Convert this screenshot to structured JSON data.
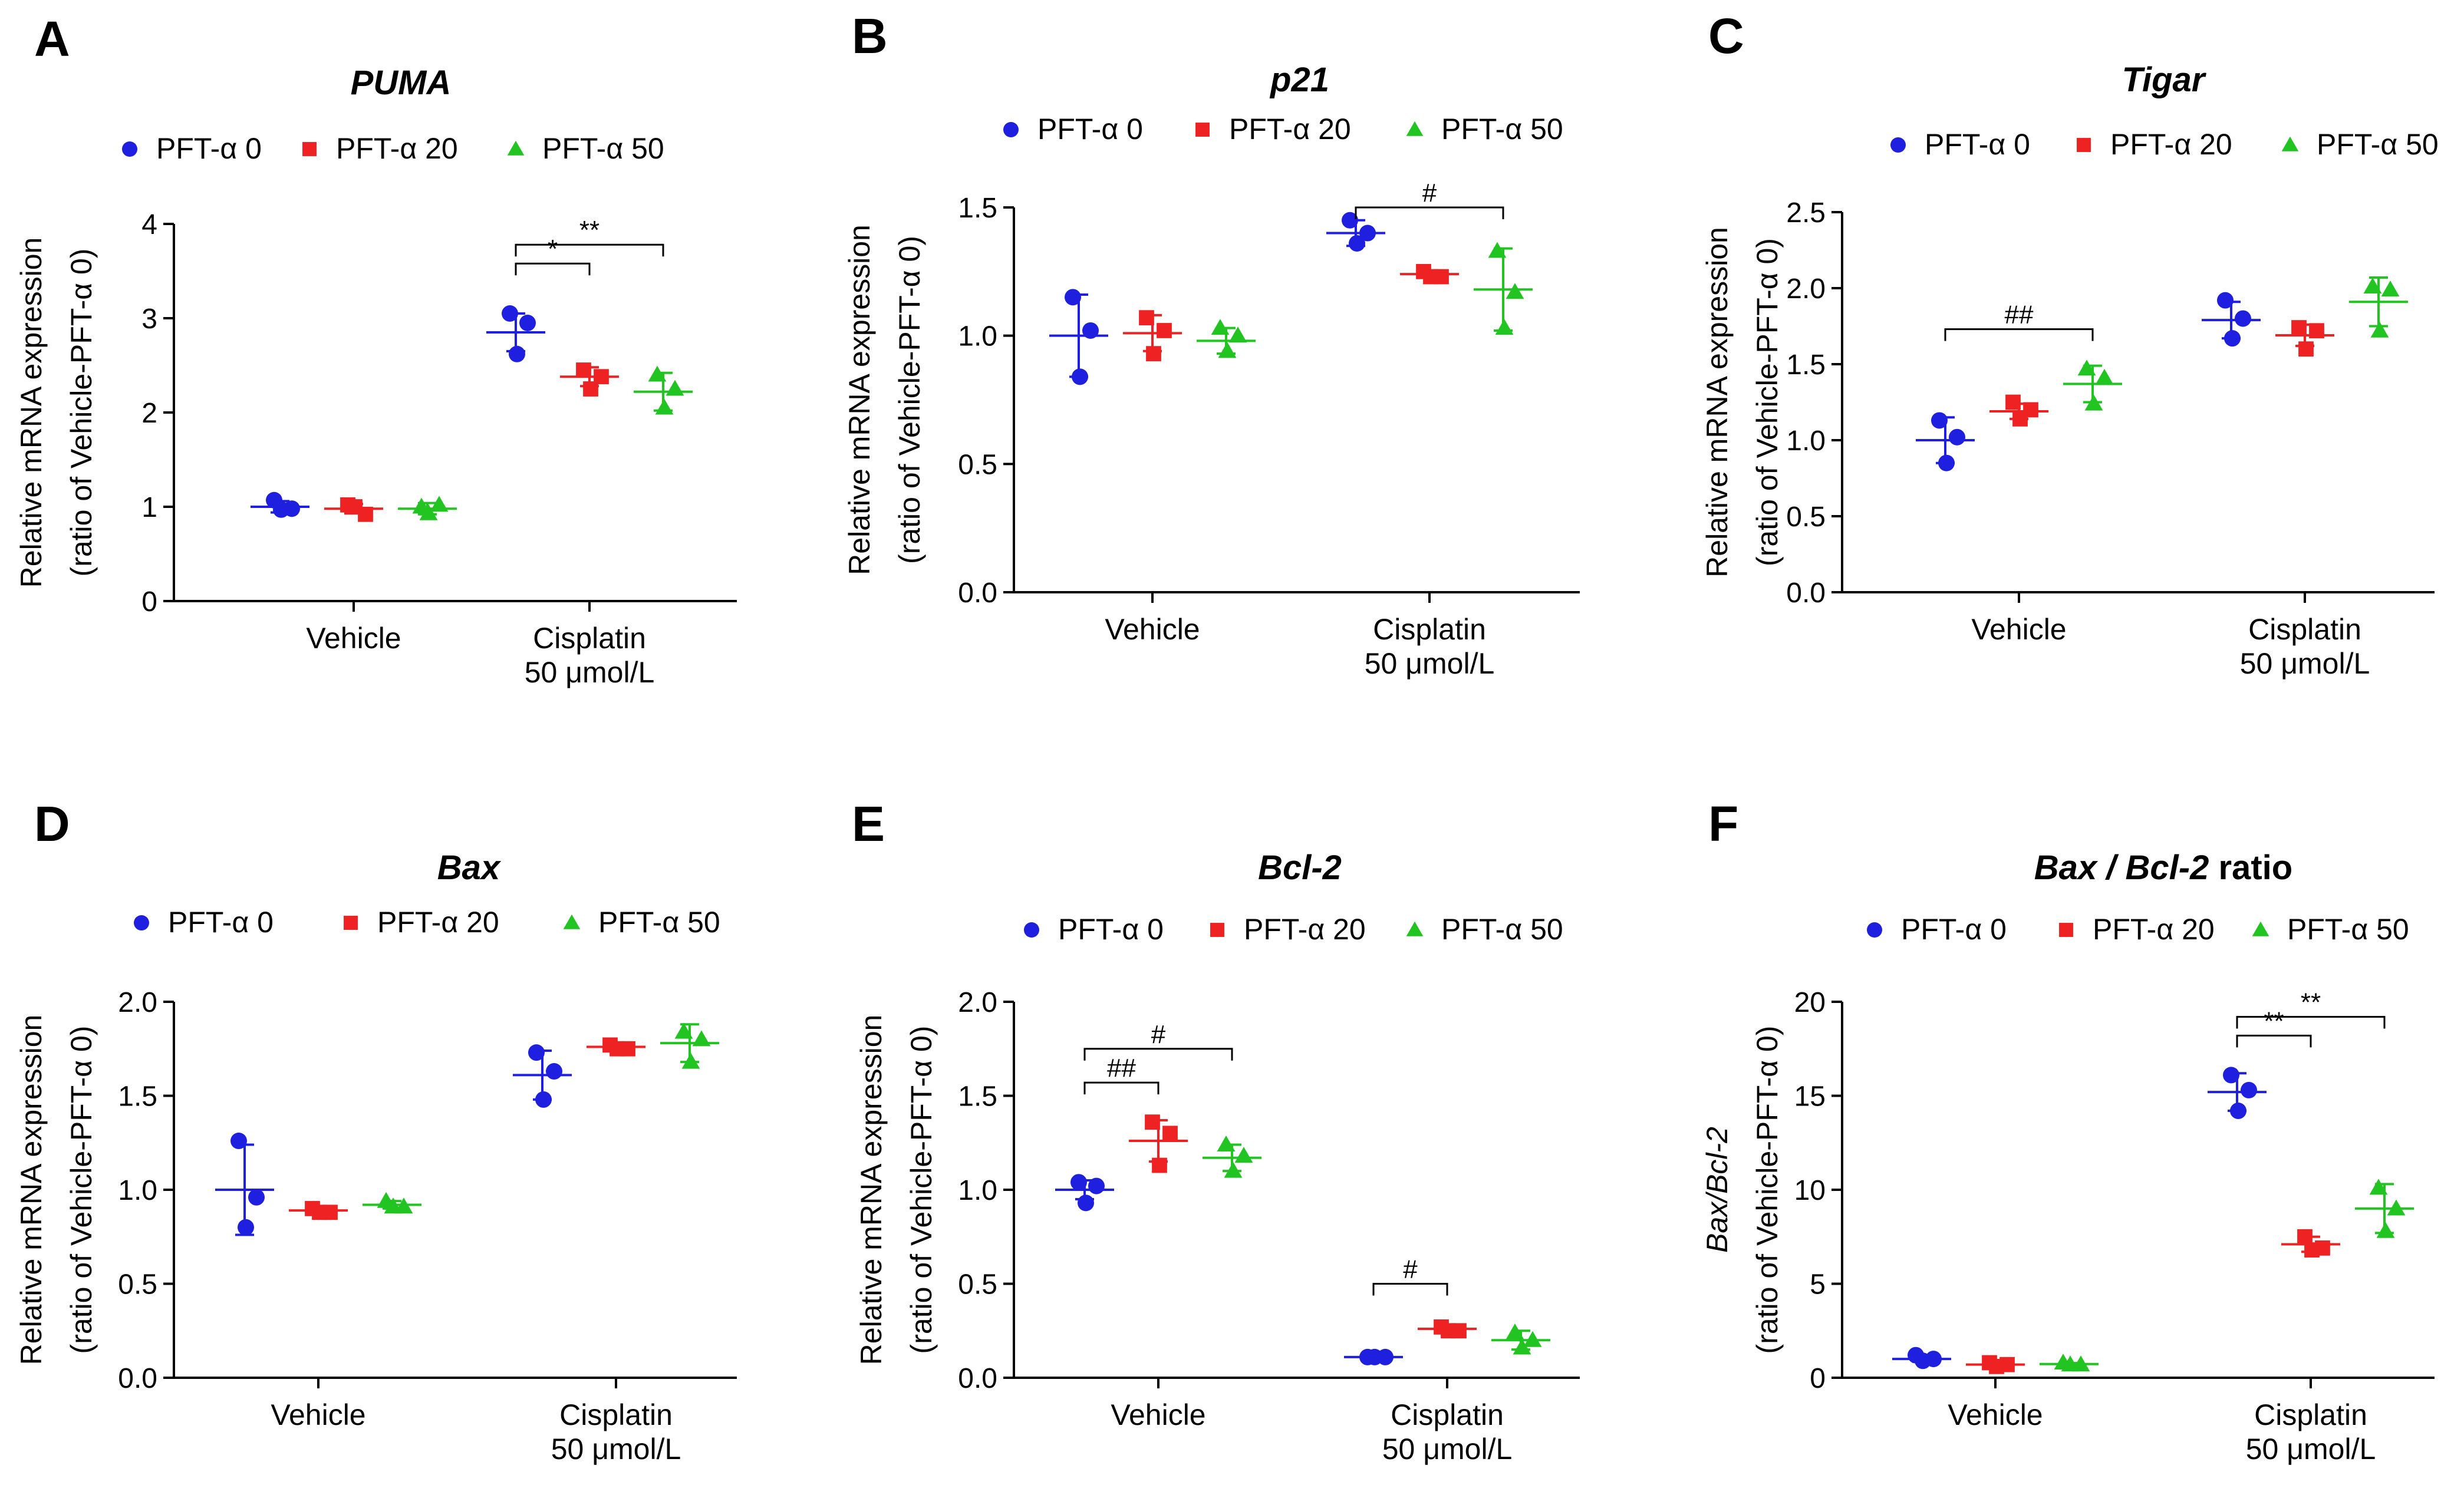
{
  "colors": {
    "PFT-α 0": "#1f1fe0",
    "PFT-α 20": "#ee2222",
    "PFT-α 50": "#22c422"
  },
  "chart_data": [
    {
      "panel": "A",
      "type": "scatter",
      "title": "PUMA",
      "ylabel_lines": [
        "Relative mRNA expression",
        "(ratio of Vehicle-PFT-α 0)"
      ],
      "ylim": [
        0,
        4
      ],
      "yticks": [
        0,
        1,
        2,
        3,
        4
      ],
      "ytick_labels": [
        "0",
        "1",
        "2",
        "3",
        "4"
      ],
      "categories": [
        [
          "Vehicle"
        ],
        [
          "Cisplatin",
          "50 μmol/L"
        ]
      ],
      "legend": [
        "PFT-α 0",
        "PFT-α 20",
        "PFT-α 50"
      ],
      "series": [
        {
          "name": "PFT-α 0",
          "marker": "circle",
          "groups": [
            {
              "points": [
                1.07,
                0.98,
                0.97
              ],
              "mean": 1.0,
              "sd": 0.06
            },
            {
              "points": [
                3.05,
                2.95,
                2.62
              ],
              "mean": 2.85,
              "sd": 0.2
            }
          ]
        },
        {
          "name": "PFT-α 20",
          "marker": "square",
          "groups": [
            {
              "points": [
                1.02,
                0.92,
                1.0
              ],
              "mean": 0.98,
              "sd": 0.05
            },
            {
              "points": [
                2.45,
                2.38,
                2.25
              ],
              "mean": 2.38,
              "sd": 0.1
            }
          ]
        },
        {
          "name": "PFT-α 50",
          "marker": "triangle",
          "groups": [
            {
              "points": [
                1.0,
                1.02,
                0.93
              ],
              "mean": 0.98,
              "sd": 0.06
            },
            {
              "points": [
                2.4,
                2.25,
                2.05
              ],
              "mean": 2.22,
              "sd": 0.2
            }
          ]
        }
      ],
      "annotations": [
        {
          "label": "*",
          "group": 1,
          "from": 0,
          "to": 1,
          "y": 3.58
        },
        {
          "label": "**",
          "group": 1,
          "from": 0,
          "to": 2,
          "y": 3.78
        }
      ]
    },
    {
      "panel": "B",
      "type": "scatter",
      "title": "p21",
      "ylabel_lines": [
        "Relative mRNA expression",
        "(ratio of Vehicle-PFT-α 0)"
      ],
      "ylim": [
        0,
        1.5
      ],
      "yticks": [
        0,
        0.5,
        1.0,
        1.5
      ],
      "ytick_labels": [
        "0.0",
        "0.5",
        "1.0",
        "1.5"
      ],
      "categories": [
        [
          "Vehicle"
        ],
        [
          "Cisplatin",
          "50 μmol/L"
        ]
      ],
      "legend": [
        "PFT-α 0",
        "PFT-α 20",
        "PFT-α 50"
      ],
      "series": [
        {
          "name": "PFT-α 0",
          "marker": "circle",
          "groups": [
            {
              "points": [
                1.15,
                1.02,
                0.84
              ],
              "mean": 1.0,
              "sd": 0.16
            },
            {
              "points": [
                1.45,
                1.4,
                1.36
              ],
              "mean": 1.4,
              "sd": 0.05
            }
          ]
        },
        {
          "name": "PFT-α 20",
          "marker": "square",
          "groups": [
            {
              "points": [
                1.07,
                1.02,
                0.93
              ],
              "mean": 1.01,
              "sd": 0.07
            },
            {
              "points": [
                1.25,
                1.23,
                1.23
              ],
              "mean": 1.24,
              "sd": 0.01
            }
          ]
        },
        {
          "name": "PFT-α 50",
          "marker": "triangle",
          "groups": [
            {
              "points": [
                1.03,
                1.0,
                0.94
              ],
              "mean": 0.98,
              "sd": 0.05
            },
            {
              "points": [
                1.33,
                1.17,
                1.03
              ],
              "mean": 1.18,
              "sd": 0.16
            }
          ]
        }
      ],
      "annotations": [
        {
          "label": "#",
          "group": 1,
          "from": 0,
          "to": 2,
          "y": 1.5
        }
      ]
    },
    {
      "panel": "C",
      "type": "scatter",
      "title": "Tigar",
      "ylabel_lines": [
        "Relative mRNA expression",
        "(ratio of Vehicle-PFT-α 0)"
      ],
      "ylim": [
        0,
        2.5
      ],
      "yticks": [
        0,
        0.5,
        1.0,
        1.5,
        2.0,
        2.5
      ],
      "ytick_labels": [
        "0.0",
        "0.5",
        "1.0",
        "1.5",
        "2.0",
        "2.5"
      ],
      "categories": [
        [
          "Vehicle"
        ],
        [
          "Cisplatin",
          "50 μmol/L"
        ]
      ],
      "legend": [
        "PFT-α 0",
        "PFT-α 20",
        "PFT-α 50"
      ],
      "series": [
        {
          "name": "PFT-α 0",
          "marker": "circle",
          "groups": [
            {
              "points": [
                1.13,
                1.02,
                0.85
              ],
              "mean": 1.0,
              "sd": 0.15
            },
            {
              "points": [
                1.92,
                1.8,
                1.67
              ],
              "mean": 1.79,
              "sd": 0.12
            }
          ]
        },
        {
          "name": "PFT-α 20",
          "marker": "square",
          "groups": [
            {
              "points": [
                1.25,
                1.2,
                1.14
              ],
              "mean": 1.19,
              "sd": 0.05
            },
            {
              "points": [
                1.74,
                1.72,
                1.6
              ],
              "mean": 1.69,
              "sd": 0.07
            }
          ]
        },
        {
          "name": "PFT-α 50",
          "marker": "triangle",
          "groups": [
            {
              "points": [
                1.47,
                1.41,
                1.24
              ],
              "mean": 1.37,
              "sd": 0.12
            },
            {
              "points": [
                2.01,
                1.99,
                1.72
              ],
              "mean": 1.91,
              "sd": 0.16
            }
          ]
        }
      ],
      "annotations": [
        {
          "label": "##",
          "group": 0,
          "from": 0,
          "to": 2,
          "y": 1.73
        }
      ]
    },
    {
      "panel": "D",
      "type": "scatter",
      "title": "Bax",
      "ylabel_lines": [
        "Relative mRNA expression",
        "(ratio of Vehicle-PFT-α 0)"
      ],
      "ylim": [
        0,
        2.0
      ],
      "yticks": [
        0,
        0.5,
        1.0,
        1.5,
        2.0
      ],
      "ytick_labels": [
        "0.0",
        "0.5",
        "1.0",
        "1.5",
        "2.0"
      ],
      "categories": [
        [
          "Vehicle"
        ],
        [
          "Cisplatin",
          "50 μmol/L"
        ]
      ],
      "legend": [
        "PFT-α 0",
        "PFT-α 20",
        "PFT-α 50"
      ],
      "series": [
        {
          "name": "PFT-α 0",
          "marker": "circle",
          "groups": [
            {
              "points": [
                1.26,
                0.96,
                0.8
              ],
              "mean": 1.0,
              "sd": 0.24
            },
            {
              "points": [
                1.73,
                1.63,
                1.48
              ],
              "mean": 1.61,
              "sd": 0.13
            }
          ]
        },
        {
          "name": "PFT-α 20",
          "marker": "square",
          "groups": [
            {
              "points": [
                0.9,
                0.88,
                0.88
              ],
              "mean": 0.89,
              "sd": 0.02
            },
            {
              "points": [
                1.77,
                1.75,
                1.75
              ],
              "mean": 1.76,
              "sd": 0.02
            }
          ]
        },
        {
          "name": "PFT-α 50",
          "marker": "triangle",
          "groups": [
            {
              "points": [
                0.94,
                0.91,
                0.91
              ],
              "mean": 0.92,
              "sd": 0.02
            },
            {
              "points": [
                1.84,
                1.8,
                1.68
              ],
              "mean": 1.78,
              "sd": 0.1
            }
          ]
        }
      ],
      "annotations": []
    },
    {
      "panel": "E",
      "type": "scatter",
      "title": "Bcl-2",
      "ylabel_lines": [
        "Relative mRNA expression",
        "(ratio of Vehicle-PFT-α 0)"
      ],
      "ylim": [
        0,
        2.0
      ],
      "yticks": [
        0,
        0.5,
        1.0,
        1.5,
        2.0
      ],
      "ytick_labels": [
        "0.0",
        "0.5",
        "1.0",
        "1.5",
        "2.0"
      ],
      "categories": [
        [
          "Vehicle"
        ],
        [
          "Cisplatin",
          "50 μmol/L"
        ]
      ],
      "legend": [
        "PFT-α 0",
        "PFT-α 20",
        "PFT-α 50"
      ],
      "series": [
        {
          "name": "PFT-α 0",
          "marker": "circle",
          "groups": [
            {
              "points": [
                1.04,
                1.02,
                0.93
              ],
              "mean": 1.0,
              "sd": 0.05
            },
            {
              "points": [
                0.11,
                0.11,
                0.11
              ],
              "mean": 0.11,
              "sd": 0.01
            }
          ]
        },
        {
          "name": "PFT-α 20",
          "marker": "square",
          "groups": [
            {
              "points": [
                1.36,
                1.3,
                1.13
              ],
              "mean": 1.26,
              "sd": 0.11
            },
            {
              "points": [
                0.27,
                0.25,
                0.25
              ],
              "mean": 0.26,
              "sd": 0.02
            }
          ]
        },
        {
          "name": "PFT-α 50",
          "marker": "triangle",
          "groups": [
            {
              "points": [
                1.24,
                1.18,
                1.1
              ],
              "mean": 1.17,
              "sd": 0.07
            },
            {
              "points": [
                0.24,
                0.2,
                0.16
              ],
              "mean": 0.2,
              "sd": 0.05
            }
          ]
        }
      ],
      "annotations": [
        {
          "label": "##",
          "group": 0,
          "from": 0,
          "to": 1,
          "y": 1.57
        },
        {
          "label": "#",
          "group": 0,
          "from": 0,
          "to": 2,
          "y": 1.75
        },
        {
          "label": "#",
          "group": 1,
          "from": 0,
          "to": 1,
          "y": 0.5
        }
      ]
    },
    {
      "panel": "F",
      "type": "scatter",
      "title": "Bax / Bcl-2",
      "title_suffix": "ratio",
      "ylabel_lines": [
        "Bax/Bcl-2",
        "(ratio of Vehicle-PFT-α 0)"
      ],
      "ylim": [
        0,
        20
      ],
      "yticks": [
        0,
        5,
        10,
        15,
        20
      ],
      "ytick_labels": [
        "0",
        "5",
        "10",
        "15",
        "20"
      ],
      "categories": [
        [
          "Vehicle"
        ],
        [
          "Cisplatin",
          "50 μmol/L"
        ]
      ],
      "legend": [
        "PFT-α 0",
        "PFT-α 20",
        "PFT-α 50"
      ],
      "series": [
        {
          "name": "PFT-α 0",
          "marker": "circle",
          "groups": [
            {
              "points": [
                1.2,
                1.0,
                0.9
              ],
              "mean": 1.0,
              "sd": 0.15
            },
            {
              "points": [
                16.1,
                15.3,
                14.2
              ],
              "mean": 15.2,
              "sd": 1.0
            }
          ]
        },
        {
          "name": "PFT-α 20",
          "marker": "square",
          "groups": [
            {
              "points": [
                0.8,
                0.7,
                0.6
              ],
              "mean": 0.7,
              "sd": 0.1
            },
            {
              "points": [
                7.5,
                6.9,
                6.8
              ],
              "mean": 7.1,
              "sd": 0.4
            }
          ]
        },
        {
          "name": "PFT-α 50",
          "marker": "triangle",
          "groups": [
            {
              "points": [
                0.8,
                0.7,
                0.7
              ],
              "mean": 0.73,
              "sd": 0.05
            },
            {
              "points": [
                10.1,
                9.0,
                7.8
              ],
              "mean": 9.0,
              "sd": 1.3
            }
          ]
        }
      ],
      "annotations": [
        {
          "label": "**",
          "group": 1,
          "from": 0,
          "to": 1,
          "y": 18.2
        },
        {
          "label": "**",
          "group": 1,
          "from": 0,
          "to": 2,
          "y": 19.2
        }
      ]
    }
  ]
}
